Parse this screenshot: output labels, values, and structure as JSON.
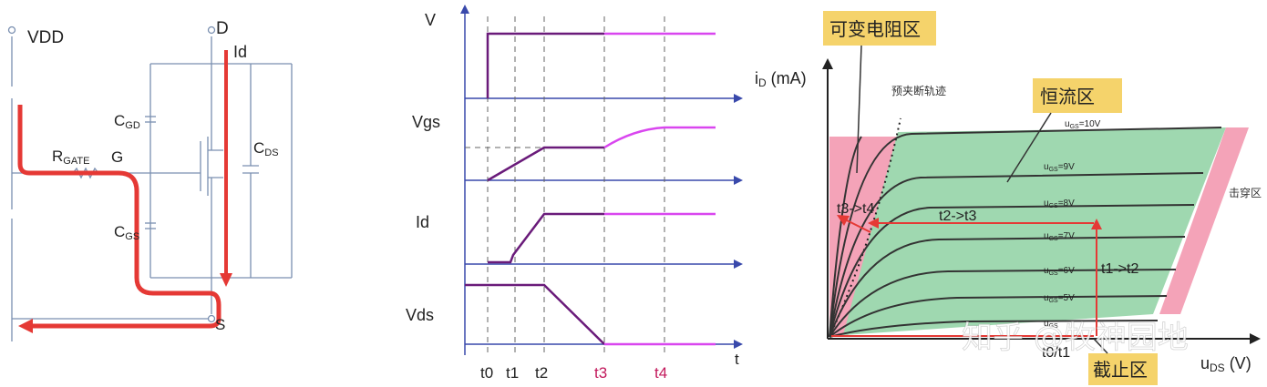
{
  "circuit": {
    "vdd": "VDD",
    "drain": "D",
    "gate": "G",
    "source": "S",
    "id": "Id",
    "rgate_main": "R",
    "rgate_sub": "GATE",
    "cgd_main": "C",
    "cgd_sub": "GD",
    "cgs_main": "C",
    "cgs_sub": "GS",
    "cds_main": "C",
    "cds_sub": "DS"
  },
  "timing": {
    "rows": [
      "V",
      "Vgs",
      "Id",
      "Vds"
    ],
    "axis_t": "t",
    "ticks": [
      "t0",
      "t1",
      "t2",
      "t3",
      "t4"
    ],
    "tick_colors": [
      "#222222",
      "#222222",
      "#222222",
      "#c2185b",
      "#c2185b"
    ]
  },
  "output_char": {
    "y_axis_label": "i",
    "y_axis_sub": "D",
    "y_axis_unit": " (mA)",
    "x_axis_label": "u",
    "x_axis_sub": "DS",
    "x_axis_unit": " (V)",
    "region_variable": "可变电阻区",
    "region_constant": "恒流区",
    "region_cutoff": "截止区",
    "region_breakdown": "击穿区",
    "pinchoff_trace": "预夹断轨迹",
    "curves": [
      {
        "u": "u",
        "sub": "GS",
        "val": "=10V"
      },
      {
        "u": "u",
        "sub": "GS",
        "val": "=9V"
      },
      {
        "u": "u",
        "sub": "GS",
        "val": "=8V"
      },
      {
        "u": "u",
        "sub": "GS",
        "val": "=7V"
      },
      {
        "u": "u",
        "sub": "GS",
        "val": "=6V"
      },
      {
        "u": "u",
        "sub": "GS",
        "val": "=5V"
      },
      {
        "u": "u",
        "sub": "GS",
        "val": ""
      }
    ],
    "transitions": [
      "t0/t1",
      "t1->t2",
      "t2->t3",
      "t3->t4"
    ],
    "watermark": "知乎 @牧神园地",
    "colors": {
      "variable": "#f4a3b8",
      "constant": "#9fd8b0",
      "breakdown": "#f4a3b8",
      "path": "#e53935",
      "label_box": "#f5d36b"
    }
  }
}
